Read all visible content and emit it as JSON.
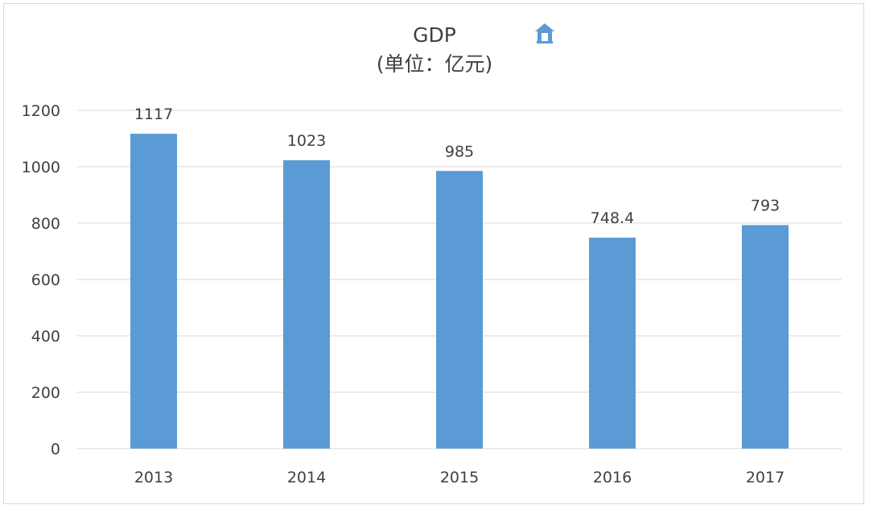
{
  "chart_data": {
    "type": "bar",
    "title": "GDP",
    "subtitle": "(单位：亿元)",
    "categories": [
      "2013",
      "2014",
      "2015",
      "2016",
      "2017"
    ],
    "values": [
      1117,
      1023,
      985,
      748.4,
      793
    ],
    "data_labels": [
      "1117",
      "1023",
      "985",
      "748.4",
      "793"
    ],
    "ylim": [
      0,
      1200
    ],
    "yticks": [
      0,
      200,
      400,
      600,
      800,
      1000,
      1200
    ],
    "grid": true,
    "legend": "none",
    "bar_color": "#5b9bd5"
  },
  "icons": {
    "title_icon": "home-icon"
  },
  "colors": {
    "grid": "#d9d9d9",
    "text": "#404040",
    "icon": "#5b9bd5"
  }
}
